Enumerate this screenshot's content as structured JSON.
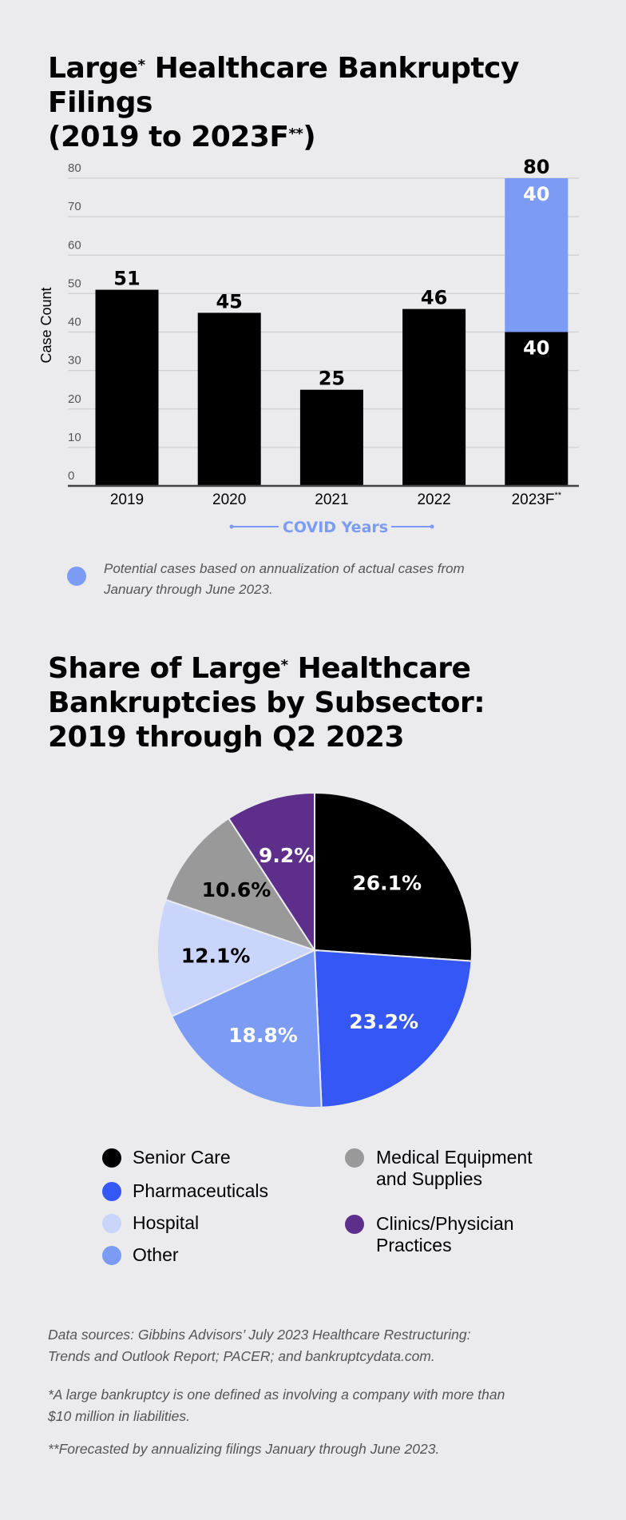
{
  "chart_data": [
    {
      "type": "bar",
      "title": "Large* Healthcare Bankruptcy Filings (2019 to 2023F**)",
      "title_parts": {
        "line1_a": "Large",
        "line1_sup": "*",
        "line1_b": " Healthcare Bankruptcy Filings",
        "line2_a": "(2019 to 2023F",
        "line2_sup": "**",
        "line2_b": ")"
      },
      "ylabel": "Case Count",
      "ylim": [
        0,
        80
      ],
      "yticks": [
        "0",
        "10",
        "20",
        "30",
        "40",
        "50",
        "60",
        "70",
        "80"
      ],
      "grid": true,
      "categories": [
        "2019",
        "2020",
        "2021",
        "2022",
        "2023F**"
      ],
      "series": [
        {
          "values": [
            51,
            45,
            25,
            46,
            40
          ],
          "color": "#000000"
        },
        {
          "values": [
            0,
            0,
            0,
            0,
            40
          ],
          "color": "#7b9bf4"
        }
      ],
      "data_labels": [
        "51",
        "45",
        "25",
        "46",
        "80"
      ],
      "stack_labels": {
        "actual": "40",
        "potential": "40"
      },
      "annotation": "COVID Years",
      "annotation_color": "#7b9bf4",
      "legend": {
        "text_line1": "Potential cases based on annualization of actual cases from",
        "text_line2": "January through June 2023.",
        "color": "#7b9bf4",
        "placement": "bottom-left"
      }
    },
    {
      "type": "pie",
      "title_parts": {
        "line1_a": "Share of Large",
        "line1_sup": "*",
        "line1_b": " Healthcare",
        "line2": "Bankruptcies by Subsector:",
        "line3": "2019 through Q2 2023"
      },
      "slices": [
        {
          "name": "Senior Care",
          "value": 26.1,
          "label": "26.1%",
          "color": "#000000",
          "label_color": "#ffffff"
        },
        {
          "name": "Pharmaceuticals",
          "value": 23.2,
          "label": "23.2%",
          "color": "#3557f5",
          "label_color": "#ffffff"
        },
        {
          "name": "Other",
          "value": 18.8,
          "label": "18.8%",
          "color": "#7b9bf4",
          "label_color": "#ffffff"
        },
        {
          "name": "Hospital",
          "value": 12.1,
          "label": "12.1%",
          "color": "#c9d5fb",
          "label_color": "#000000"
        },
        {
          "name": "Medical Equipment and Supplies",
          "value": 10.6,
          "label": "10.6%",
          "color": "#999999",
          "label_color": "#000000"
        },
        {
          "name": "Clinics/Physician Practices",
          "value": 9.2,
          "label": "9.2%",
          "color": "#5e2f8a",
          "label_color": "#ffffff"
        }
      ],
      "legend": {
        "senior_care": "Senior Care",
        "pharmaceuticals": "Pharmaceuticals",
        "hospital": "Hospital",
        "other": "Other",
        "medical_line1": "Medical Equipment",
        "medical_line2": "and Supplies",
        "clinics_line1": "Clinics/Physician",
        "clinics_line2": "Practices",
        "placement": "bottom"
      }
    }
  ],
  "footnotes": {
    "sources_line1": "Data sources: Gibbins Advisors’ July 2023 Healthcare Restructuring:",
    "sources_line2": "Trends and Outlook Report; PACER; and bankruptcydata.com.",
    "large_line1": "*A large bankruptcy is one defined as involving a company with more than",
    "large_line2": "$10 million in liabilities.",
    "forecast": "**Forecasted by annualizing filings January through June 2023."
  }
}
